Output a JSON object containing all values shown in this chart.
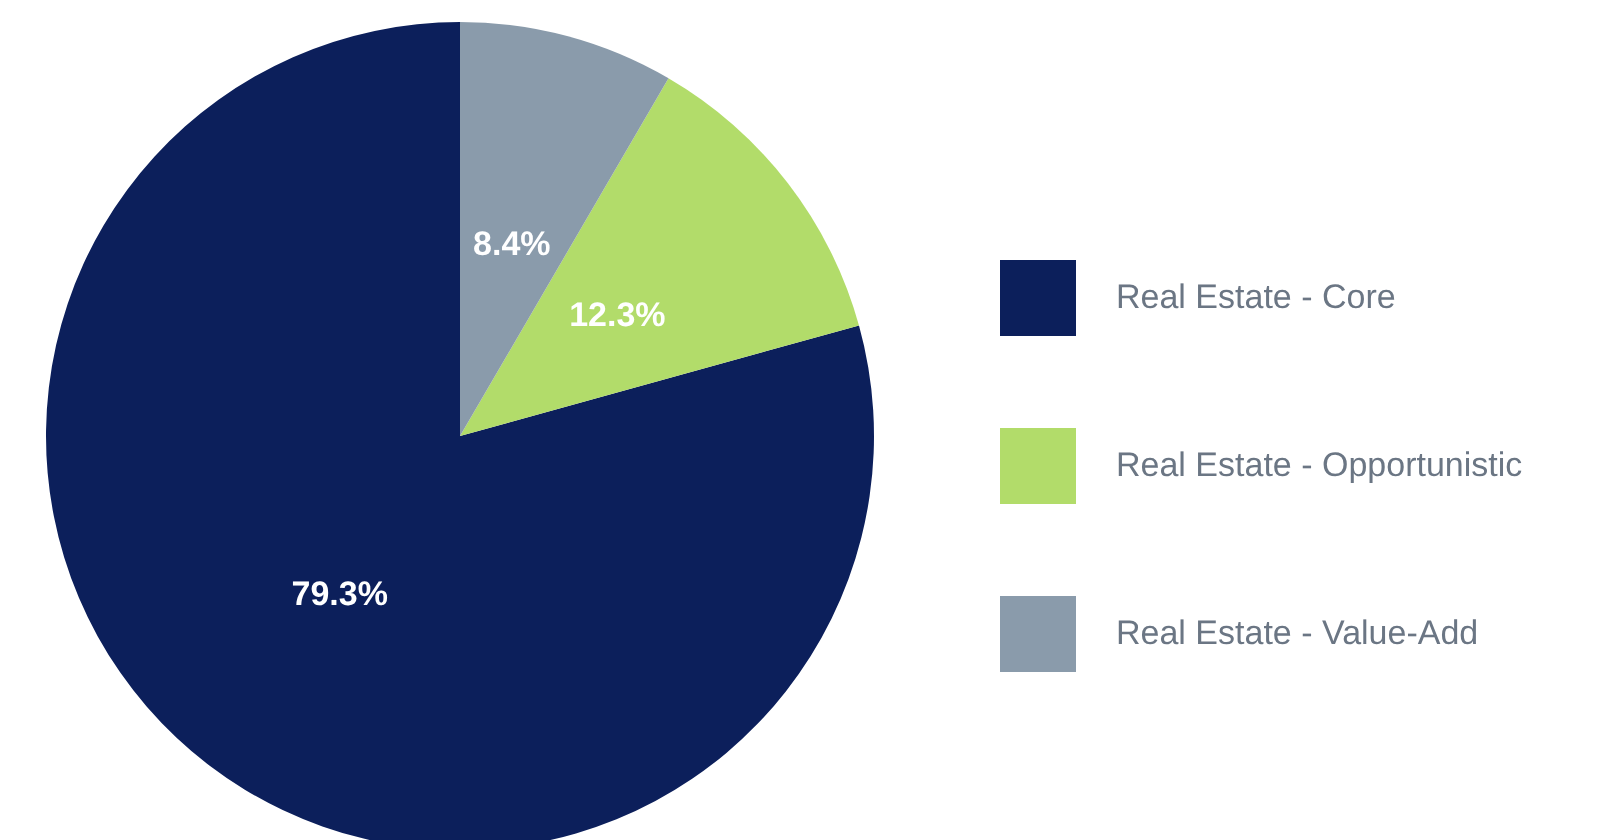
{
  "chart_data": {
    "type": "pie",
    "categories": [
      "Real Estate - Core",
      "Real Estate - Opportunistic",
      "Real Estate - Value-Add"
    ],
    "values": [
      79.3,
      12.3,
      8.4
    ],
    "colors": [
      "#0c1f5b",
      "#b2dc6a",
      "#8a9bab"
    ],
    "value_labels": [
      "79.3%",
      "12.3%",
      "8.4%"
    ],
    "legend": "right"
  }
}
